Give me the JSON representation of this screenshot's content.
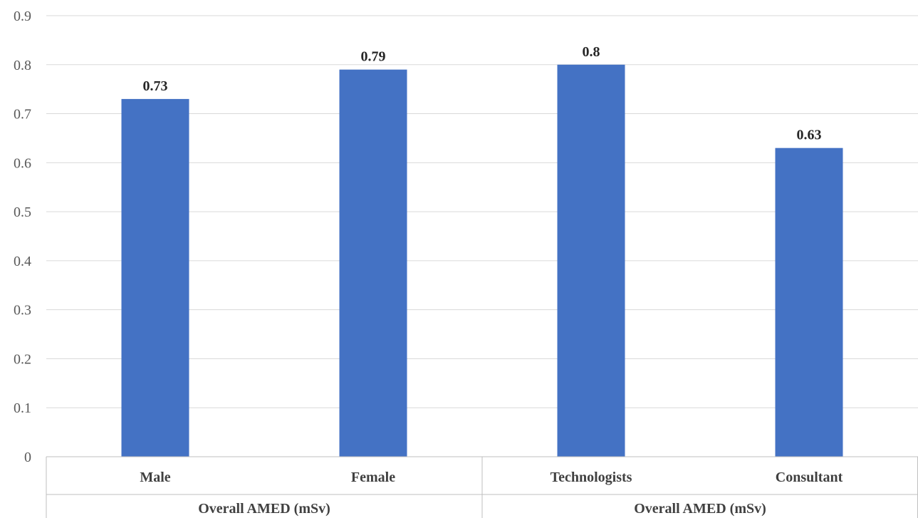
{
  "chart_data": {
    "type": "bar",
    "categories": [
      "Male",
      "Female",
      "Technologists",
      "Consultant"
    ],
    "values": [
      0.73,
      0.79,
      0.8,
      0.63
    ],
    "data_labels": [
      "0.73",
      "0.79",
      "0.8",
      "0.63"
    ],
    "groups": [
      {
        "label": "Overall AMED (mSv)",
        "categories": [
          "Male",
          "Female"
        ]
      },
      {
        "label": "Overall AMED (mSv)",
        "categories": [
          "Technologists",
          "Consultant"
        ]
      }
    ],
    "ylim": [
      0,
      0.9
    ],
    "yticks": [
      "0",
      "0.1",
      "0.2",
      "0.3",
      "0.4",
      "0.5",
      "0.6",
      "0.7",
      "0.8",
      "0.9"
    ],
    "grid": true,
    "bar_color": "#4472C4",
    "title": "",
    "xlabel": "",
    "ylabel": ""
  }
}
